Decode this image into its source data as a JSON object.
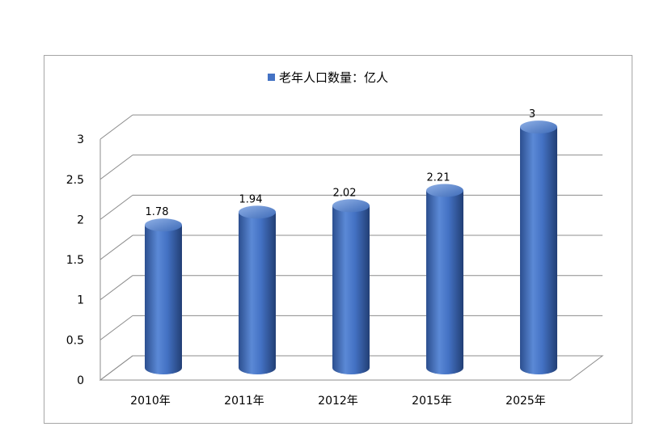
{
  "chart_data": {
    "type": "bar",
    "title": "",
    "categories": [
      "2010年",
      "2011年",
      "2012年",
      "2015年",
      "2025年"
    ],
    "series": [
      {
        "name": "老年人口数量：亿人",
        "values": [
          1.78,
          1.94,
          2.02,
          2.21,
          3
        ]
      }
    ],
    "data_labels": [
      "1.78",
      "1.94",
      "2.02",
      "2.21",
      "3"
    ],
    "ylim": [
      0,
      3
    ],
    "y_ticks": [
      "0",
      "0.5",
      "1",
      "1.5",
      "2",
      "2.5",
      "3"
    ],
    "grid": true,
    "legend_position": "top",
    "style": "3d-cylinder",
    "colors": {
      "bar": "#4472c4",
      "bar_dark": "#2c4f8f",
      "bar_light": "#7fa3e0",
      "grid": "#8c8c8c"
    }
  }
}
